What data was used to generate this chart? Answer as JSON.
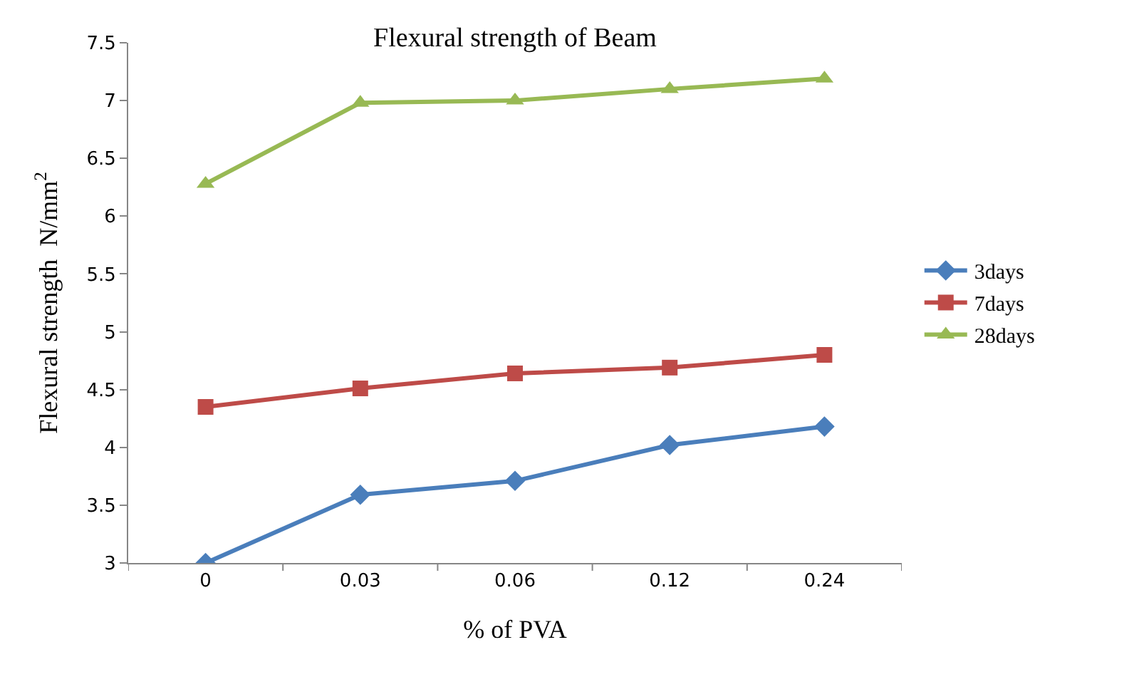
{
  "chart_data": {
    "type": "line",
    "title": "Flexural strength of Beam",
    "xlabel": "% of PVA",
    "ylabel": "Flexural strength  N/mm$^{2}$",
    "categories": [
      "0",
      "0.03",
      "0.06",
      "0.12",
      "0.24"
    ],
    "series": [
      {
        "name": "3days",
        "color": "#4a7ebb",
        "marker": "diamond",
        "values": [
          3.0,
          3.59,
          3.71,
          4.02,
          4.18
        ]
      },
      {
        "name": "7days",
        "color": "#be4b48",
        "marker": "square",
        "values": [
          4.35,
          4.51,
          4.64,
          4.69,
          4.8
        ]
      },
      {
        "name": "28days",
        "color": "#98b954",
        "marker": "triangle",
        "values": [
          6.28,
          6.98,
          7.0,
          7.1,
          7.19
        ]
      }
    ],
    "ylim": [
      3,
      7.5
    ],
    "yticks": [
      3,
      3.5,
      4,
      4.5,
      5,
      5.5,
      6,
      6.5,
      7,
      7.5
    ],
    "legend": "right",
    "line_style": "solid"
  }
}
